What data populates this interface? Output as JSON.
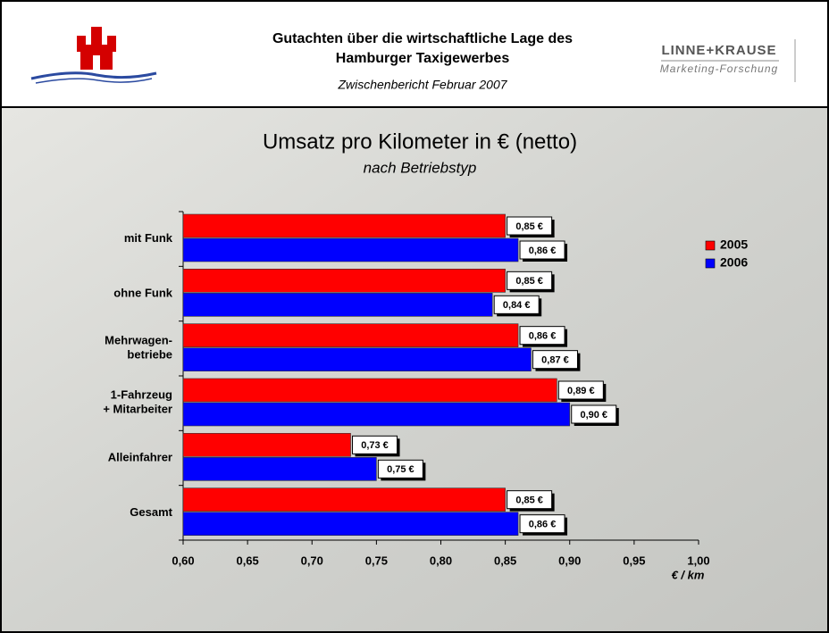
{
  "header": {
    "title_line1": "Gutachten über die wirtschaftliche Lage des",
    "title_line2": "Hamburger Taxigewerbes",
    "subtitle": "Zwischenbericht Februar 2007",
    "brand": "LINNE+KRAUSE",
    "brand_sub": "Marketing-Forschung"
  },
  "chart_data": {
    "type": "bar",
    "orientation": "horizontal",
    "title": "Umsatz pro Kilometer in € (netto)",
    "subtitle": "nach Betriebstyp",
    "x_label": "€ / km",
    "categories": [
      "mit Funk",
      "ohne Funk",
      "Mehrwagen-\nbetriebe",
      "1-Fahrzeug\n+ Mitarbeiter",
      "Alleinfahrer",
      "Gesamt"
    ],
    "series": [
      {
        "name": "2005",
        "color": "#ff0000",
        "values": [
          0.85,
          0.85,
          0.86,
          0.89,
          0.73,
          0.85
        ],
        "value_labels": [
          "0,85 €",
          "0,85 €",
          "0,86 €",
          "0,89 €",
          "0,73 €",
          "0,85 €"
        ]
      },
      {
        "name": "2006",
        "color": "#0000ff",
        "values": [
          0.86,
          0.84,
          0.87,
          0.9,
          0.75,
          0.86
        ],
        "value_labels": [
          "0,86 €",
          "0,84 €",
          "0,87 €",
          "0,90 €",
          "0,75 €",
          "0,86 €"
        ]
      }
    ],
    "xlim": [
      0.6,
      1.0
    ],
    "xticks": [
      {
        "value": 0.6,
        "label": "0,60"
      },
      {
        "value": 0.65,
        "label": "0,65"
      },
      {
        "value": 0.7,
        "label": "0,70"
      },
      {
        "value": 0.75,
        "label": "0,75"
      },
      {
        "value": 0.8,
        "label": "0,80"
      },
      {
        "value": 0.85,
        "label": "0,85"
      },
      {
        "value": 0.9,
        "label": "0,90"
      },
      {
        "value": 0.95,
        "label": "0,95"
      },
      {
        "value": 1.0,
        "label": "1,00"
      }
    ],
    "legend": "right"
  }
}
